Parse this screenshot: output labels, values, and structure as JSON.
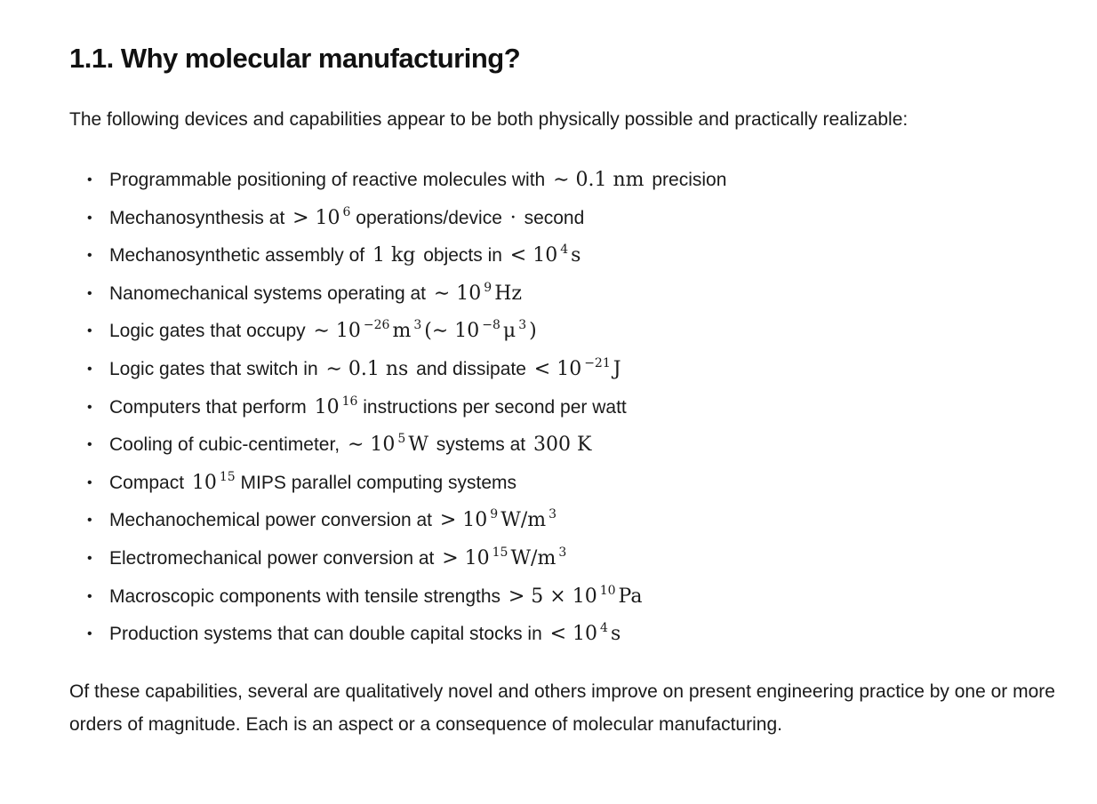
{
  "heading": "1.1. Why molecular manufacturing?",
  "intro": "The following devices and capabilities appear to be both physically possible and practically realizable:",
  "items": [
    [
      {
        "t": "Programmable positioning of reactive molecules with "
      },
      {
        "m": "∼ 0.1 nm"
      },
      {
        "t": " precision"
      }
    ],
    [
      {
        "t": "Mechanosynthesis at "
      },
      {
        "m": "> 10"
      },
      {
        "s": "6"
      },
      {
        "t": " operations/device "
      },
      {
        "m": "·"
      },
      {
        "t": " second"
      }
    ],
    [
      {
        "t": "Mechanosynthetic assembly of "
      },
      {
        "m": "1 kg"
      },
      {
        "t": " objects in "
      },
      {
        "m": "< 10"
      },
      {
        "s": "4"
      },
      {
        "m": "s"
      }
    ],
    [
      {
        "t": "Nanomechanical systems operating at "
      },
      {
        "m": "∼ 10"
      },
      {
        "s": "9"
      },
      {
        "m": "Hz"
      }
    ],
    [
      {
        "t": "Logic gates that occupy "
      },
      {
        "m": "∼ 10"
      },
      {
        "s": "−26"
      },
      {
        "m": "m"
      },
      {
        "s": "3"
      },
      {
        "m": "(∼ 10"
      },
      {
        "s": "−8"
      },
      {
        "m": "μ"
      },
      {
        "s": "3"
      },
      {
        "m": ")"
      }
    ],
    [
      {
        "t": "Logic gates that switch in "
      },
      {
        "m": "∼ 0.1 ns"
      },
      {
        "t": " and dissipate "
      },
      {
        "m": "< 10"
      },
      {
        "s": "−21"
      },
      {
        "m": "J"
      }
    ],
    [
      {
        "t": "Computers that perform "
      },
      {
        "m": "10"
      },
      {
        "s": "16"
      },
      {
        "t": " instructions per second per watt"
      }
    ],
    [
      {
        "t": "Cooling of cubic-centimeter, "
      },
      {
        "m": "∼ 10"
      },
      {
        "s": "5"
      },
      {
        "m": "W"
      },
      {
        "t": " systems at "
      },
      {
        "m": "300 K"
      }
    ],
    [
      {
        "t": "Compact "
      },
      {
        "m": "10"
      },
      {
        "s": "15"
      },
      {
        "t": " MIPS parallel computing systems"
      }
    ],
    [
      {
        "t": "Mechanochemical power conversion at "
      },
      {
        "m": "> 10"
      },
      {
        "s": "9"
      },
      {
        "m": "W/m"
      },
      {
        "s": "3"
      }
    ],
    [
      {
        "t": "Electromechanical power conversion at "
      },
      {
        "m": "> 10"
      },
      {
        "s": "15"
      },
      {
        "m": "W/m"
      },
      {
        "s": "3"
      }
    ],
    [
      {
        "t": "Macroscopic components with tensile strengths "
      },
      {
        "m": "> 5 × 10"
      },
      {
        "s": "10"
      },
      {
        "m": "Pa"
      }
    ],
    [
      {
        "t": "Production systems that can double capital stocks in "
      },
      {
        "m": "< 10"
      },
      {
        "s": "4"
      },
      {
        "m": "s"
      }
    ]
  ],
  "bullet": "•",
  "outro": "Of these capabilities, several are qualitatively novel and others improve on present engineering practice by one or more orders of magnitude. Each is an aspect or a consequence of molecular manufacturing."
}
